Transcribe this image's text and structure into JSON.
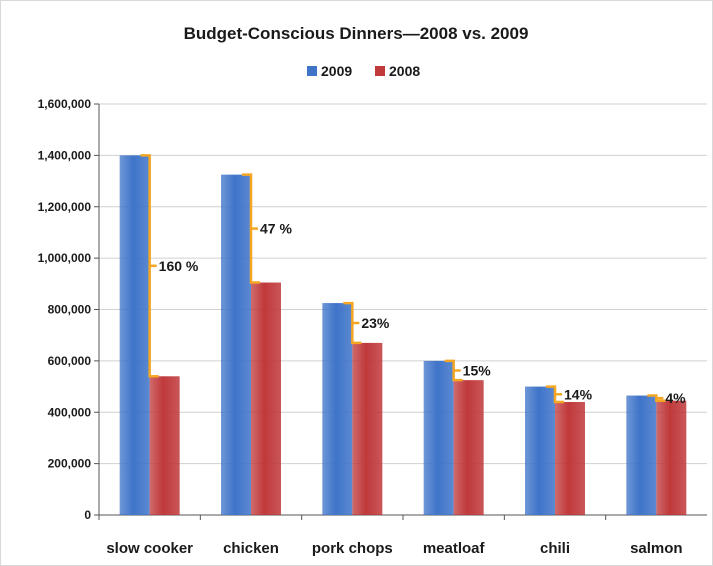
{
  "chart_data": {
    "type": "bar",
    "title": "Budget-Conscious Dinners—2008 vs. 2009",
    "categories": [
      "slow cooker",
      "chicken",
      "pork chops",
      "meatloaf",
      "chili",
      "salmon"
    ],
    "series": [
      {
        "name": "2009",
        "color": "#3f74c9",
        "values": [
          1400000,
          1325000,
          825000,
          600000,
          500000,
          465000
        ]
      },
      {
        "name": "2008",
        "color": "#c0393b",
        "values": [
          540000,
          905000,
          670000,
          525000,
          440000,
          445000
        ]
      }
    ],
    "annotations": [
      "160 %",
      "47 %",
      "23%",
      "15%",
      "14%",
      "4%"
    ],
    "annotation_color": "#f5a623",
    "ylim": [
      0,
      1600000
    ],
    "yticks": [
      "0",
      "200,000",
      "400,000",
      "600,000",
      "800,000",
      "1,000,000",
      "1,200,000",
      "1,400,000",
      "1,600,000"
    ],
    "grid": true,
    "legend": "top-center",
    "xlabel": "",
    "ylabel": ""
  }
}
